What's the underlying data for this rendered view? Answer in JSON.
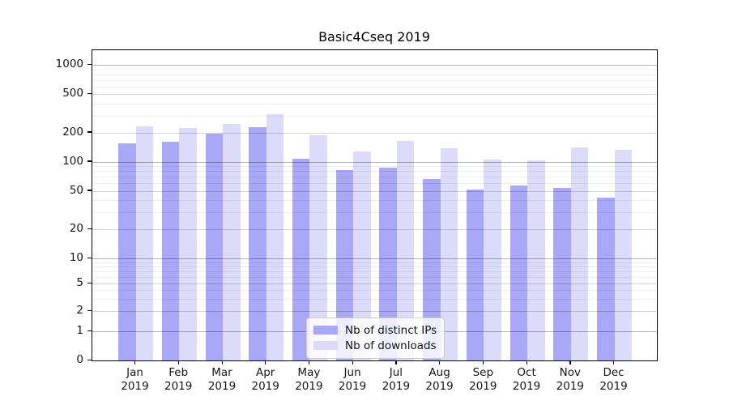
{
  "title": "Basic4Cseq 2019",
  "chart_data": {
    "type": "bar",
    "title": "Basic4Cseq 2019",
    "categories": [
      "Jan 2019",
      "Feb 2019",
      "Mar 2019",
      "Apr 2019",
      "May 2019",
      "Jun 2019",
      "Jul 2019",
      "Aug 2019",
      "Sep 2019",
      "Oct 2019",
      "Nov 2019",
      "Dec 2019"
    ],
    "series": [
      {
        "name": "Nb of distinct IPs",
        "color": "#a8a8f6",
        "values": [
          155,
          160,
          197,
          228,
          107,
          82,
          87,
          66,
          52,
          57,
          54,
          43
        ]
      },
      {
        "name": "Nb of downloads",
        "color": "#dcdcfa",
        "values": [
          233,
          223,
          246,
          313,
          190,
          129,
          163,
          139,
          106,
          104,
          141,
          134
        ]
      }
    ],
    "yticks": [
      0,
      1,
      2,
      5,
      10,
      20,
      50,
      100,
      200,
      500,
      1000
    ],
    "ytick_labels": [
      "0",
      "1",
      "2",
      "5",
      "10",
      "20",
      "50",
      "100",
      "200",
      "500",
      "1000"
    ],
    "minor_yticks": [
      3,
      4,
      6,
      7,
      8,
      9,
      30,
      40,
      60,
      70,
      80,
      90,
      300,
      400,
      600,
      700,
      800,
      900
    ],
    "yscale": "log above 1, compressed linear below 1, 0 at baseline",
    "ylim_top": 1400,
    "grid": {
      "which": "both",
      "major_color": "#c8c8c8",
      "minor_color": "#ececec",
      "decade_color": "#a9a9a9"
    },
    "legend": {
      "position": "lower center",
      "entries": [
        "Nb of distinct IPs",
        "Nb of downloads"
      ]
    }
  }
}
